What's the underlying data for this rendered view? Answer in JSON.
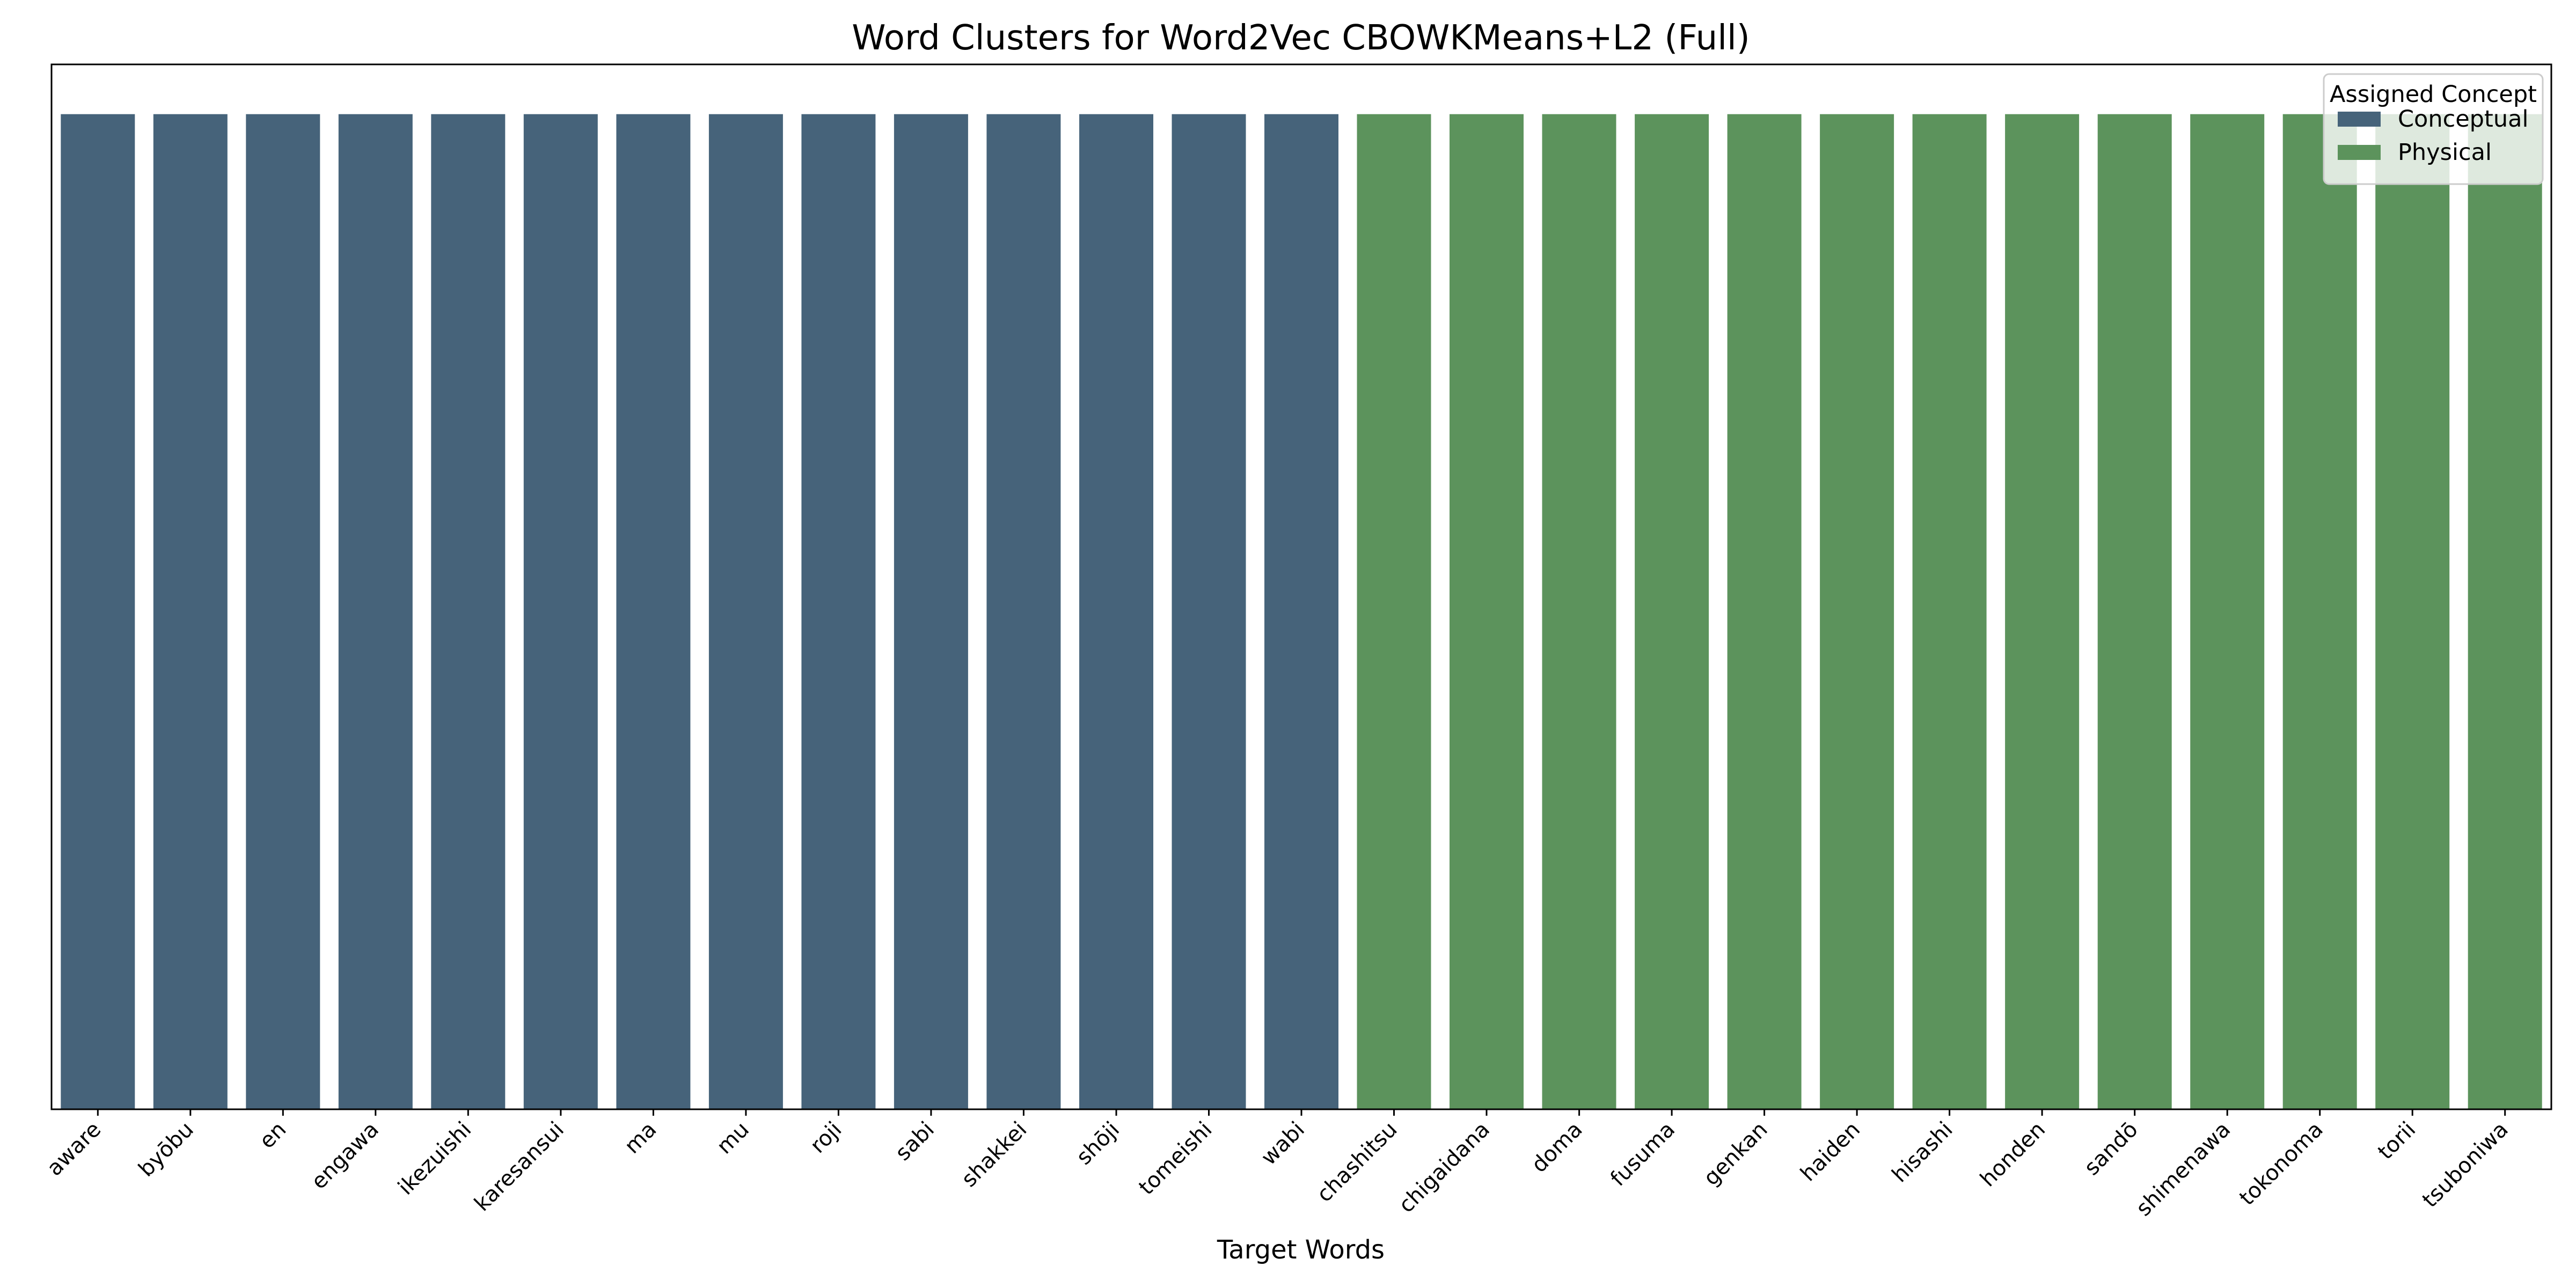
{
  "chart_data": {
    "type": "bar",
    "title": "Word Clusters for Word2Vec CBOWKMeans+L2 (Full)",
    "xlabel": "Target Words",
    "ylabel": "",
    "categories": [
      "aware",
      "byōbu",
      "en",
      "engawa",
      "ikezuishi",
      "karesansui",
      "ma",
      "mu",
      "roji",
      "sabi",
      "shakkei",
      "shōji",
      "tomeishi",
      "wabi",
      "chashitsu",
      "chigaidana",
      "doma",
      "fusuma",
      "genkan",
      "haiden",
      "hisashi",
      "honden",
      "sandō",
      "shimenawa",
      "tokonoma",
      "torii",
      "tsuboniwa"
    ],
    "series": [
      {
        "name": "Conceptual",
        "color": "#46637a",
        "values": [
          1,
          1,
          1,
          1,
          1,
          1,
          1,
          1,
          1,
          1,
          1,
          1,
          1,
          1,
          0,
          0,
          0,
          0,
          0,
          0,
          0,
          0,
          0,
          0,
          0,
          0,
          0
        ]
      },
      {
        "name": "Physical",
        "color": "#5c935c",
        "values": [
          0,
          0,
          0,
          0,
          0,
          0,
          0,
          0,
          0,
          0,
          0,
          0,
          0,
          0,
          1,
          1,
          1,
          1,
          1,
          1,
          1,
          1,
          1,
          1,
          1,
          1,
          1
        ]
      }
    ],
    "ylim": [
      0,
      1.05
    ],
    "y_ticks_shown": false,
    "grid": false,
    "legend": {
      "title": "Assigned Concept",
      "placement": "top-right",
      "entries": [
        "Conceptual",
        "Physical"
      ]
    }
  }
}
